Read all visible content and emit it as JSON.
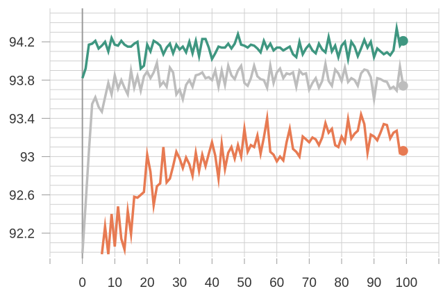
{
  "chart_data": {
    "type": "line",
    "title": "",
    "xlabel": "",
    "ylabel": "",
    "xlim": [
      -10,
      110
    ],
    "ylim": [
      91.95,
      94.55
    ],
    "x_ticks": [
      0,
      10,
      20,
      30,
      40,
      50,
      60,
      70,
      80,
      90,
      100
    ],
    "x_tick_labels": [
      "0",
      "10",
      "20",
      "30",
      "40",
      "50",
      "60",
      "70",
      "80",
      "90",
      "100"
    ],
    "y_ticks": [
      92.2,
      92.6,
      93,
      93.4,
      93.8,
      94.2
    ],
    "y_tick_labels": [
      "92.2",
      "92.6",
      "93",
      "93.4",
      "93.8",
      "94.2"
    ],
    "grid": true,
    "legend": "none",
    "series": [
      {
        "color": "#3e9680",
        "x": [
          0,
          1,
          2,
          3,
          4,
          5,
          6,
          7,
          8,
          9,
          10,
          11,
          12,
          13,
          14,
          15,
          16,
          17,
          18,
          19,
          20,
          21,
          22,
          23,
          24,
          25,
          26,
          27,
          28,
          29,
          30,
          31,
          32,
          33,
          34,
          35,
          36,
          37,
          38,
          39,
          40,
          41,
          42,
          43,
          44,
          45,
          46,
          47,
          48,
          49,
          50,
          51,
          52,
          53,
          54,
          55,
          56,
          57,
          58,
          59,
          60,
          61,
          62,
          63,
          64,
          65,
          66,
          67,
          68,
          69,
          70,
          71,
          72,
          73,
          74,
          75,
          76,
          77,
          78,
          79,
          80,
          81,
          82,
          83,
          84,
          85,
          86,
          87,
          88,
          89,
          90,
          91,
          92,
          93,
          94,
          95,
          96,
          97,
          98,
          99
        ],
        "values": [
          93.82,
          93.92,
          94.17,
          94.18,
          94.21,
          94.13,
          94.16,
          94.2,
          94.1,
          94.24,
          94.17,
          94.16,
          94.21,
          94.17,
          94.15,
          94.15,
          94.18,
          94.2,
          93.92,
          93.95,
          94.17,
          94.1,
          94.21,
          94.19,
          94.16,
          94.07,
          94.14,
          94.18,
          94.08,
          94.17,
          94.12,
          94.15,
          94.09,
          94.2,
          94.08,
          94.21,
          94.05,
          94.23,
          94.23,
          94.14,
          94.02,
          94.08,
          94.15,
          94.14,
          94.14,
          94.18,
          94.13,
          94.18,
          94.28,
          94.17,
          94.16,
          94.14,
          94.17,
          94.16,
          94.13,
          94.09,
          94.21,
          94.13,
          94.18,
          94.11,
          94.14,
          94.14,
          94.11,
          94.13,
          94.15,
          94.07,
          94.04,
          94.2,
          94.07,
          94.13,
          94.17,
          94.11,
          94.08,
          94.18,
          94.12,
          94.09,
          94.25,
          94.1,
          94.16,
          94.04,
          94.16,
          94.2,
          94.02,
          94.2,
          94.15,
          94.05,
          94.13,
          94.22,
          94.14,
          94.2,
          94.04,
          94.13,
          94.1,
          94.07,
          94.09,
          94.06,
          94.11,
          94.34,
          94.16,
          94.21
        ]
      },
      {
        "color": "#bdbdbd",
        "x": [
          0,
          1,
          2,
          3,
          4,
          5,
          6,
          7,
          8,
          9,
          10,
          11,
          12,
          13,
          14,
          15,
          16,
          17,
          18,
          19,
          20,
          21,
          22,
          23,
          24,
          25,
          26,
          27,
          28,
          29,
          30,
          31,
          32,
          33,
          34,
          35,
          36,
          37,
          38,
          39,
          40,
          41,
          42,
          43,
          44,
          45,
          46,
          47,
          48,
          49,
          50,
          51,
          52,
          53,
          54,
          55,
          56,
          57,
          58,
          59,
          60,
          61,
          62,
          63,
          64,
          65,
          66,
          67,
          68,
          69,
          70,
          71,
          72,
          73,
          74,
          75,
          76,
          77,
          78,
          79,
          80,
          81,
          82,
          83,
          84,
          85,
          86,
          87,
          88,
          89,
          90,
          91,
          92,
          93,
          94,
          95,
          96,
          97,
          98,
          99
        ],
        "values": [
          91.99,
          92.5,
          93.05,
          93.55,
          93.62,
          93.52,
          93.47,
          93.62,
          93.77,
          93.65,
          93.85,
          93.71,
          93.8,
          93.72,
          93.65,
          93.9,
          93.72,
          93.84,
          93.69,
          93.84,
          93.89,
          93.82,
          93.88,
          93.98,
          93.74,
          93.78,
          93.73,
          93.93,
          93.88,
          93.65,
          93.7,
          93.6,
          93.75,
          93.8,
          93.73,
          93.85,
          93.86,
          93.88,
          93.82,
          93.83,
          93.8,
          93.9,
          93.73,
          93.9,
          93.75,
          93.95,
          93.85,
          93.81,
          93.9,
          93.95,
          93.77,
          93.74,
          93.82,
          93.95,
          93.84,
          93.81,
          93.8,
          93.72,
          93.95,
          93.77,
          93.88,
          93.92,
          93.82,
          93.87,
          93.86,
          93.88,
          93.73,
          93.9,
          93.86,
          93.87,
          93.7,
          93.77,
          93.82,
          93.72,
          93.79,
          93.97,
          93.79,
          93.74,
          93.91,
          93.87,
          93.79,
          93.93,
          93.78,
          93.82,
          93.8,
          93.74,
          93.87,
          93.91,
          93.9,
          93.83,
          93.6,
          93.82,
          93.81,
          93.79,
          93.78,
          93.71,
          93.73,
          93.69,
          93.94,
          93.74
        ]
      },
      {
        "color": "#e77a52",
        "x": [
          6,
          7,
          8,
          9,
          10,
          11,
          12,
          13,
          14,
          15,
          16,
          17,
          18,
          19,
          20,
          21,
          22,
          23,
          24,
          25,
          26,
          27,
          28,
          29,
          30,
          31,
          32,
          33,
          34,
          35,
          36,
          37,
          38,
          39,
          40,
          41,
          42,
          43,
          44,
          45,
          46,
          47,
          48,
          49,
          50,
          51,
          52,
          53,
          54,
          55,
          56,
          57,
          58,
          59,
          60,
          61,
          62,
          63,
          64,
          65,
          66,
          67,
          68,
          69,
          70,
          71,
          72,
          73,
          74,
          75,
          76,
          77,
          78,
          79,
          80,
          81,
          82,
          83,
          84,
          85,
          86,
          87,
          88,
          89,
          90,
          91,
          92,
          93,
          94,
          95,
          96,
          97,
          98,
          99
        ],
        "values": [
          91.98,
          92.27,
          91.98,
          92.4,
          92.06,
          92.48,
          92.14,
          92.03,
          92.43,
          92.19,
          92.58,
          92.57,
          92.6,
          92.63,
          93.02,
          92.84,
          92.49,
          92.69,
          92.72,
          93.1,
          92.73,
          92.77,
          92.9,
          93.05,
          92.98,
          92.88,
          92.99,
          92.92,
          92.8,
          93.04,
          92.85,
          93.02,
          92.9,
          93.03,
          93.15,
          93.01,
          92.77,
          93.13,
          92.87,
          93.04,
          93.1,
          92.98,
          93.12,
          93.0,
          93.29,
          93.05,
          93.12,
          93.1,
          93.22,
          93.03,
          93.2,
          93.4,
          93.05,
          93.02,
          92.95,
          93.0,
          92.96,
          93.15,
          93.29,
          93.08,
          93.05,
          93.0,
          93.21,
          93.18,
          93.15,
          93.2,
          93.18,
          93.12,
          93.2,
          93.35,
          93.25,
          93.29,
          93.12,
          93.1,
          93.21,
          93.15,
          93.39,
          93.19,
          93.24,
          93.27,
          93.44,
          93.34,
          93.04,
          93.23,
          93.21,
          93.17,
          93.25,
          93.34,
          93.33,
          93.19,
          93.25,
          93.27,
          93.04,
          93.06
        ]
      }
    ]
  }
}
